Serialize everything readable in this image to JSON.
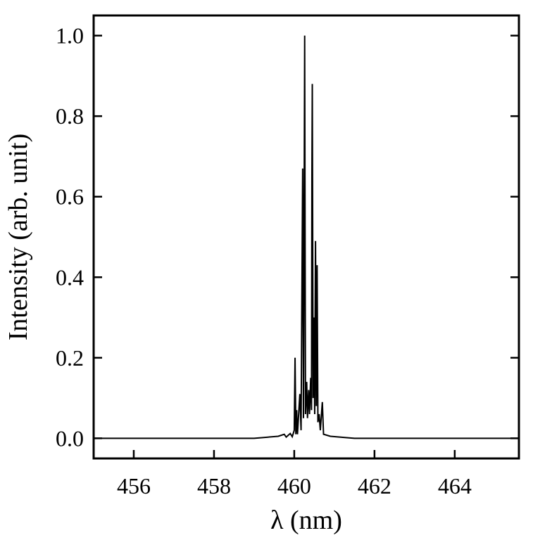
{
  "chart_data": {
    "type": "line",
    "xlabel": "λ (nm)",
    "ylabel": "Intensity (arb. unit)",
    "x": [
      455.0,
      459.0,
      459.6,
      459.75,
      459.8,
      459.9,
      459.95,
      460.0,
      460.02,
      460.04,
      460.06,
      460.08,
      460.14,
      460.17,
      460.21,
      460.23,
      460.26,
      460.28,
      460.31,
      460.33,
      460.36,
      460.38,
      460.41,
      460.43,
      460.44,
      460.45,
      460.47,
      460.49,
      460.51,
      460.53,
      460.55,
      460.57,
      460.59,
      460.62,
      460.65,
      460.7,
      460.73,
      460.9,
      461.5,
      465.6
    ],
    "values": [
      0,
      0,
      0.005,
      0.01,
      0.003,
      0.012,
      0.004,
      0.02,
      0.2,
      0.01,
      0.07,
      0.01,
      0.11,
      0.02,
      0.67,
      0.05,
      1.0,
      0.06,
      0.14,
      0.05,
      0.12,
      0.06,
      0.15,
      0.07,
      0.65,
      0.88,
      0.1,
      0.3,
      0.06,
      0.49,
      0.08,
      0.43,
      0.04,
      0.06,
      0.02,
      0.09,
      0.01,
      0.005,
      0,
      0
    ],
    "color": "#000000",
    "xlim": [
      455.0,
      465.6
    ],
    "xticks": [
      456,
      458,
      460,
      462,
      464
    ],
    "ylim": [
      -0.05,
      1.05
    ],
    "yticks": [
      {
        "value": 0,
        "label": "0.0"
      },
      {
        "value": 0.2,
        "label": "0.2"
      },
      {
        "value": 0.4,
        "label": "0.4"
      },
      {
        "value": 0.6,
        "label": "0.6"
      },
      {
        "value": 0.8,
        "label": "0.8"
      },
      {
        "value": 1,
        "label": "1.0"
      }
    ],
    "grid": false
  }
}
